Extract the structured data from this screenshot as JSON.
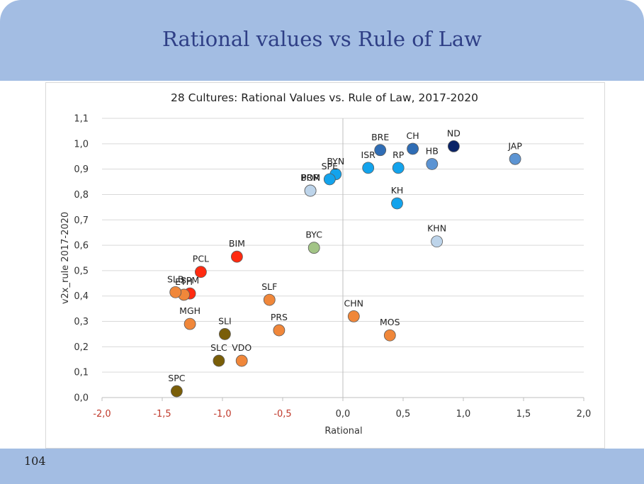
{
  "slide": {
    "title": "Rational values vs Rule of Law",
    "page_number": "104"
  },
  "chart_data": {
    "type": "scatter",
    "title": "28 Cultures: Rational Values vs. Rule of Law, 2017-2020",
    "xlabel": "Rational",
    "ylabel": "v2x_rule 2017-2020",
    "xlim": [
      -2.0,
      2.0
    ],
    "ylim": [
      0.0,
      1.1
    ],
    "x_ticks": [
      "-2,0",
      "-1,5",
      "-1,0",
      "-0,5",
      "0,0",
      "0,5",
      "1,0",
      "1,5",
      "2,0"
    ],
    "y_ticks": [
      "0,0",
      "0,1",
      "0,2",
      "0,3",
      "0,4",
      "0,5",
      "0,6",
      "0,7",
      "0,8",
      "0,9",
      "1,0",
      "1,1"
    ],
    "grid": "horizontal",
    "colors": {
      "red": "#ff2a10",
      "orange": "#f0873a",
      "olive": "#7a5e08",
      "green": "#a2c486",
      "pale_blue": "#bdd4ea",
      "light_blue": "#13a3ec",
      "mid_blue": "#5c94d3",
      "steel_blue": "#2f6db5",
      "navy": "#0a2366"
    },
    "points": [
      {
        "label": "ND",
        "x": 0.92,
        "y": 0.99,
        "color": "navy"
      },
      {
        "label": "CH",
        "x": 0.58,
        "y": 0.98,
        "color": "steel_blue"
      },
      {
        "label": "BRE",
        "x": 0.31,
        "y": 0.975,
        "color": "steel_blue"
      },
      {
        "label": "HB",
        "x": 0.74,
        "y": 0.92,
        "color": "mid_blue"
      },
      {
        "label": "JAP",
        "x": 1.43,
        "y": 0.94,
        "color": "mid_blue"
      },
      {
        "label": "ISR",
        "x": 0.21,
        "y": 0.905,
        "color": "light_blue"
      },
      {
        "label": "RP",
        "x": 0.46,
        "y": 0.905,
        "color": "light_blue"
      },
      {
        "label": "BYN",
        "x": -0.06,
        "y": 0.88,
        "color": "light_blue"
      },
      {
        "label": "SPE",
        "x": -0.11,
        "y": 0.86,
        "color": "light_blue"
      },
      {
        "label": "KH",
        "x": 0.45,
        "y": 0.765,
        "color": "light_blue"
      },
      {
        "label": "POR",
        "x": -0.27,
        "y": 0.815,
        "color": "pale_blue"
      },
      {
        "label": "BRM",
        "x": -0.27,
        "y": 0.815,
        "color": "pale_blue"
      },
      {
        "label": "KHN",
        "x": 0.78,
        "y": 0.615,
        "color": "pale_blue"
      },
      {
        "label": "BYC",
        "x": -0.24,
        "y": 0.59,
        "color": "green"
      },
      {
        "label": "BIM",
        "x": -0.88,
        "y": 0.555,
        "color": "red"
      },
      {
        "label": "PCL",
        "x": -1.18,
        "y": 0.495,
        "color": "red"
      },
      {
        "label": "SPM",
        "x": -1.27,
        "y": 0.41,
        "color": "red"
      },
      {
        "label": "ETH",
        "x": -1.32,
        "y": 0.405,
        "color": "orange"
      },
      {
        "label": "SLB",
        "x": -1.39,
        "y": 0.415,
        "color": "orange"
      },
      {
        "label": "SLF",
        "x": -0.61,
        "y": 0.385,
        "color": "orange"
      },
      {
        "label": "MGH",
        "x": -1.27,
        "y": 0.29,
        "color": "orange"
      },
      {
        "label": "PRS",
        "x": -0.53,
        "y": 0.265,
        "color": "orange"
      },
      {
        "label": "CHN",
        "x": 0.09,
        "y": 0.32,
        "color": "orange"
      },
      {
        "label": "MOS",
        "x": 0.39,
        "y": 0.245,
        "color": "orange"
      },
      {
        "label": "VDO",
        "x": -0.84,
        "y": 0.145,
        "color": "orange"
      },
      {
        "label": "SLI",
        "x": -0.98,
        "y": 0.25,
        "color": "olive"
      },
      {
        "label": "SLC",
        "x": -1.03,
        "y": 0.145,
        "color": "olive"
      },
      {
        "label": "SPC",
        "x": -1.38,
        "y": 0.025,
        "color": "olive"
      }
    ]
  }
}
